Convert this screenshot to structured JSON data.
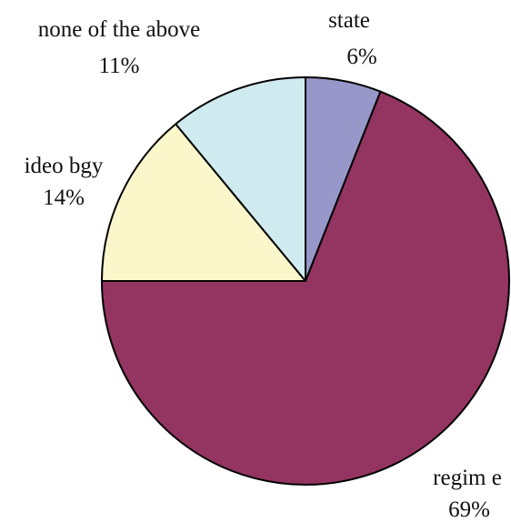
{
  "chart_data": {
    "type": "pie",
    "title": "",
    "start_angle_deg": 90,
    "direction": "clockwise",
    "slices": [
      {
        "label": "state",
        "percent_label": "6%",
        "value": 6,
        "color": "#9797CA"
      },
      {
        "label": "regim e",
        "percent_label": "69%",
        "value": 69,
        "color": "#943461"
      },
      {
        "label": "ideo bgy",
        "percent_label": "14%",
        "value": 14,
        "color": "#FBF7CB"
      },
      {
        "label": "none of the above",
        "percent_label": "11%",
        "value": 11,
        "color": "#CFEBF0"
      }
    ]
  }
}
